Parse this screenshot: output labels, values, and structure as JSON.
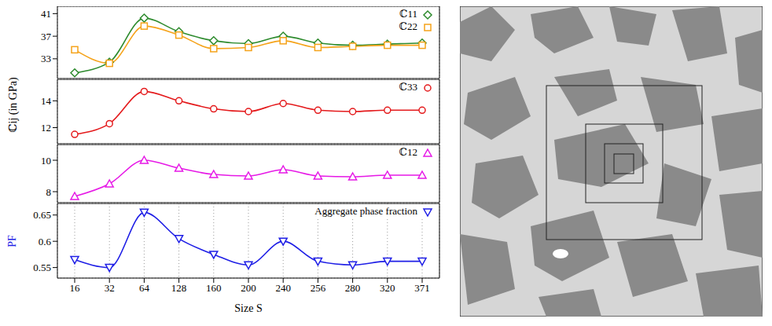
{
  "chart_data": [
    {
      "type": "line",
      "categories": [
        "16",
        "32",
        "64",
        "128",
        "160",
        "200",
        "240",
        "256",
        "280",
        "320",
        "371"
      ],
      "ylabel": "ℂij (in GPa)",
      "ylim": [
        29.5,
        42.3
      ],
      "yticks": [
        33,
        37,
        41
      ],
      "grid": true,
      "legend": "upper right",
      "tick_labels": "y",
      "series": [
        {
          "name": "ℂ11",
          "color": "#2e8b2e",
          "marker": "diamond",
          "values": [
            30.5,
            32.4,
            40.2,
            37.8,
            36.2,
            35.7,
            37.0,
            35.8,
            35.4,
            35.6,
            35.8
          ]
        },
        {
          "name": "ℂ22",
          "color": "#f5a31a",
          "marker": "square",
          "values": [
            34.6,
            32.2,
            38.8,
            37.2,
            34.8,
            35.0,
            36.2,
            35.0,
            35.2,
            35.4,
            35.4
          ]
        }
      ]
    },
    {
      "type": "line",
      "categories": [
        "16",
        "32",
        "64",
        "128",
        "160",
        "200",
        "240",
        "256",
        "280",
        "320",
        "371"
      ],
      "ylim": [
        10.8,
        15.6
      ],
      "yticks": [
        12,
        14
      ],
      "grid": true,
      "legend": "upper right",
      "tick_labels": "y",
      "series": [
        {
          "name": "ℂ33",
          "color": "#e41a1c",
          "marker": "circle",
          "values": [
            11.5,
            12.3,
            14.7,
            14.0,
            13.4,
            13.2,
            13.8,
            13.3,
            13.2,
            13.3,
            13.3
          ]
        }
      ]
    },
    {
      "type": "line",
      "categories": [
        "16",
        "32",
        "64",
        "128",
        "160",
        "200",
        "240",
        "256",
        "280",
        "320",
        "371"
      ],
      "ylim": [
        7.3,
        11.0
      ],
      "yticks": [
        8,
        10
      ],
      "grid": true,
      "legend": "upper right",
      "tick_labels": "y",
      "series": [
        {
          "name": "ℂ12",
          "color": "#e619e6",
          "marker": "triangle",
          "values": [
            7.7,
            8.5,
            10.0,
            9.5,
            9.1,
            9.0,
            9.4,
            9.0,
            8.95,
            9.05,
            9.05
          ]
        }
      ]
    },
    {
      "type": "line",
      "categories": [
        "16",
        "32",
        "64",
        "128",
        "160",
        "200",
        "240",
        "256",
        "280",
        "320",
        "371"
      ],
      "ylabel": "PF",
      "xlabel": "Size S",
      "ylim": [
        0.53,
        0.672
      ],
      "yticks": [
        0.55,
        0.6,
        0.65
      ],
      "grid": true,
      "legend": "upper right",
      "series": [
        {
          "name": "Aggregate phase fraction",
          "color": "#1f1fe6",
          "marker": "triangle_down",
          "values": [
            0.565,
            0.55,
            0.655,
            0.605,
            0.575,
            0.555,
            0.6,
            0.562,
            0.555,
            0.562,
            0.562
          ]
        }
      ]
    }
  ]
}
